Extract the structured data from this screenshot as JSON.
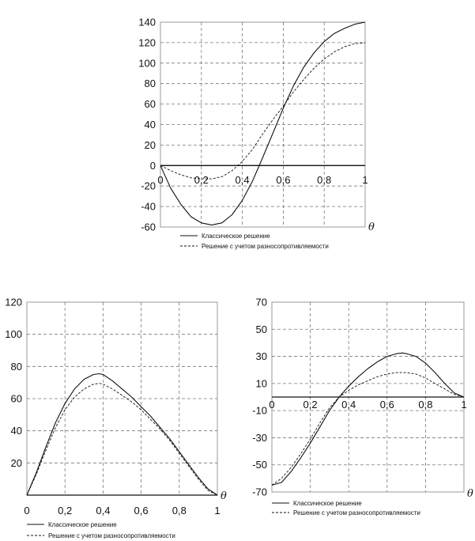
{
  "chart_data": [
    {
      "type": "line",
      "xlabel": "θ",
      "xlim": [
        0,
        1
      ],
      "ylim": [
        -60,
        140
      ],
      "xticks": [
        0,
        0.2,
        0.4,
        0.6,
        0.8,
        1
      ],
      "xtick_labels": [
        "0",
        "0,2",
        "0,4",
        "0,6",
        "0,8",
        "1"
      ],
      "yticks": [
        -60,
        -40,
        -20,
        0,
        20,
        40,
        60,
        80,
        100,
        120,
        140
      ],
      "ytick_labels": [
        "-60",
        "-40",
        "-20",
        "0",
        "20",
        "40",
        "60",
        "80",
        "100",
        "120",
        "140"
      ],
      "grid": true,
      "legend_position": "bottom-left",
      "series": [
        {
          "name": "Классическое решение",
          "style": "solid",
          "x": [
            0,
            0.05,
            0.1,
            0.15,
            0.2,
            0.25,
            0.3,
            0.35,
            0.4,
            0.45,
            0.5,
            0.55,
            0.6,
            0.65,
            0.7,
            0.75,
            0.8,
            0.85,
            0.9,
            0.95,
            1
          ],
          "y": [
            0,
            -22,
            -38,
            -50,
            -56,
            -58,
            -56,
            -48,
            -34,
            -15,
            8,
            32,
            56,
            78,
            96,
            110,
            121,
            129,
            134,
            138,
            140
          ]
        },
        {
          "name": "Решение с учетом разносопротивляемости",
          "style": "dashed",
          "x": [
            0,
            0.05,
            0.1,
            0.15,
            0.2,
            0.25,
            0.3,
            0.35,
            0.4,
            0.45,
            0.5,
            0.55,
            0.6,
            0.65,
            0.7,
            0.75,
            0.8,
            0.85,
            0.9,
            0.95,
            1
          ],
          "y": [
            0,
            -5,
            -9,
            -12,
            -13,
            -13,
            -11,
            -5,
            4,
            16,
            31,
            45,
            58,
            72,
            84,
            95,
            104,
            111,
            116,
            119,
            120
          ]
        }
      ]
    },
    {
      "type": "line",
      "xlabel": "θ",
      "xlim": [
        0,
        1
      ],
      "ylim": [
        0,
        120
      ],
      "xticks": [
        0,
        0.2,
        0.4,
        0.6,
        0.8,
        1
      ],
      "xtick_labels": [
        "0",
        "0,2",
        "0,4",
        "0,6",
        "0,8",
        "1"
      ],
      "yticks": [
        20,
        40,
        60,
        80,
        100,
        120
      ],
      "ytick_labels": [
        "20",
        "40",
        "60",
        "80",
        "100",
        "120"
      ],
      "grid": true,
      "legend_position": "bottom-left",
      "series": [
        {
          "name": "Классическое решение",
          "style": "solid",
          "x": [
            0,
            0.05,
            0.1,
            0.15,
            0.2,
            0.25,
            0.3,
            0.35,
            0.38,
            0.4,
            0.45,
            0.5,
            0.55,
            0.6,
            0.65,
            0.7,
            0.75,
            0.8,
            0.85,
            0.9,
            0.95,
            1
          ],
          "y": [
            0,
            14,
            30,
            45,
            57,
            66,
            72,
            75,
            75.5,
            75,
            71,
            66,
            61,
            55,
            49,
            42,
            35,
            27,
            19,
            11,
            4,
            0
          ]
        },
        {
          "name": "Решение с учетом разносопротивляемости",
          "style": "dashed",
          "x": [
            0,
            0.05,
            0.1,
            0.15,
            0.2,
            0.25,
            0.3,
            0.35,
            0.38,
            0.4,
            0.45,
            0.5,
            0.55,
            0.6,
            0.65,
            0.7,
            0.75,
            0.8,
            0.85,
            0.9,
            0.95,
            1
          ],
          "y": [
            0,
            13,
            28,
            42,
            53,
            61,
            66,
            69,
            69.5,
            69,
            66,
            62,
            58,
            53,
            47,
            41,
            34,
            26,
            18,
            10,
            3,
            0
          ]
        }
      ]
    },
    {
      "type": "line",
      "xlabel": "θ",
      "xlim": [
        0,
        1
      ],
      "ylim": [
        -70,
        70
      ],
      "xticks": [
        0,
        0.2,
        0.4,
        0.6,
        0.8,
        1
      ],
      "xtick_labels": [
        "0",
        "0,2",
        "0,4",
        "0,6",
        "0,8",
        "1"
      ],
      "yticks": [
        -70,
        -50,
        -30,
        -10,
        10,
        30,
        50,
        70
      ],
      "ytick_labels": [
        "-70",
        "-50",
        "-30",
        "-10",
        "10",
        "30",
        "50",
        "70"
      ],
      "grid": true,
      "legend_position": "bottom-left",
      "series": [
        {
          "name": "Классическое решение",
          "style": "solid",
          "x": [
            0,
            0.05,
            0.1,
            0.15,
            0.2,
            0.25,
            0.3,
            0.35,
            0.4,
            0.45,
            0.5,
            0.55,
            0.6,
            0.65,
            0.68,
            0.7,
            0.75,
            0.8,
            0.85,
            0.9,
            0.95,
            1
          ],
          "y": [
            -65,
            -63,
            -55,
            -45,
            -34,
            -22,
            -10,
            0,
            8,
            15,
            21,
            26,
            30,
            32,
            32.5,
            32,
            30,
            25,
            18,
            10,
            3,
            0
          ]
        },
        {
          "name": "Решение с учетом разносопротивляемости",
          "style": "dashed",
          "x": [
            0,
            0.05,
            0.1,
            0.15,
            0.2,
            0.25,
            0.3,
            0.35,
            0.4,
            0.45,
            0.5,
            0.55,
            0.6,
            0.65,
            0.68,
            0.7,
            0.75,
            0.8,
            0.85,
            0.9,
            0.95,
            1
          ],
          "y": [
            -65,
            -60,
            -52,
            -42,
            -31,
            -19,
            -8,
            0,
            5,
            9,
            12,
            15,
            17,
            18,
            18,
            18,
            17,
            14,
            10,
            6,
            2,
            0
          ]
        }
      ]
    }
  ]
}
